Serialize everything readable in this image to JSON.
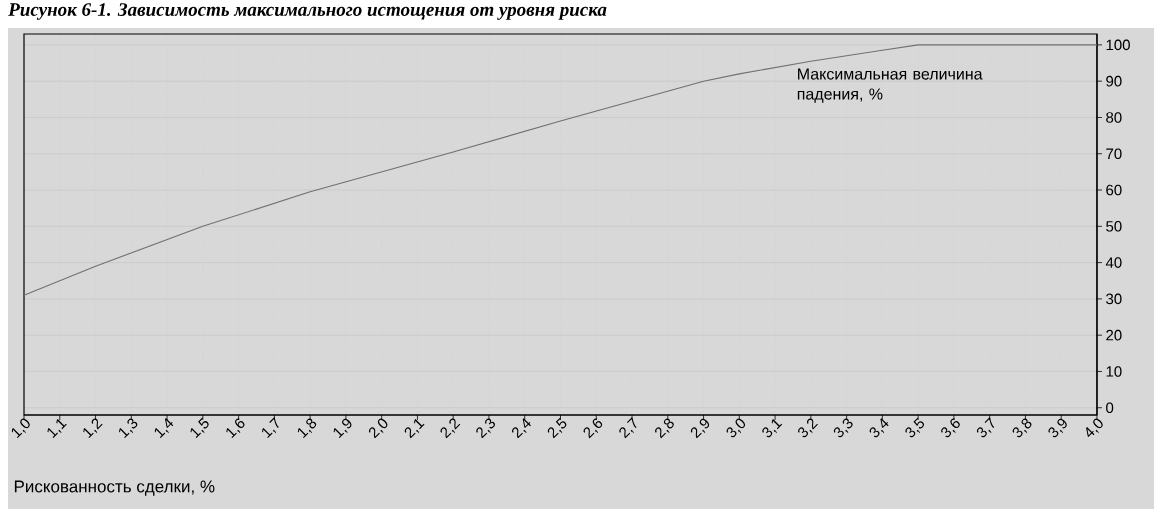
{
  "chart_data": {
    "type": "line",
    "title": "Рисунок 6-1. Зависимость максимального истощения от уровня риска",
    "xlabel": "Рискованность сделки, %",
    "ylabel": "Максимальная величина падения, %",
    "x": [
      1.0,
      1.2,
      1.5,
      1.8,
      2.0,
      2.2,
      2.5,
      2.7,
      2.9,
      3.0,
      3.2,
      3.4,
      3.5,
      4.0
    ],
    "series": [
      {
        "color": "#707070",
        "values": [
          31,
          39,
          50,
          59.5,
          65,
          70.5,
          79,
          84.5,
          90,
          92,
          95.5,
          98.5,
          100,
          100
        ]
      }
    ],
    "xlim": [
      1.0,
      4.0
    ],
    "ylim": [
      -2,
      103
    ],
    "xticks": [
      {
        "value": 1.0,
        "label": "1,0"
      },
      {
        "value": 1.1,
        "label": "1,1"
      },
      {
        "value": 1.2,
        "label": "1,2"
      },
      {
        "value": 1.3,
        "label": "1,3"
      },
      {
        "value": 1.4,
        "label": "1,4"
      },
      {
        "value": 1.5,
        "label": "1,5"
      },
      {
        "value": 1.6,
        "label": "1,6"
      },
      {
        "value": 1.7,
        "label": "1,7"
      },
      {
        "value": 1.8,
        "label": "1,8"
      },
      {
        "value": 1.9,
        "label": "1,9"
      },
      {
        "value": 2.0,
        "label": "2,0"
      },
      {
        "value": 2.1,
        "label": "2,1"
      },
      {
        "value": 2.2,
        "label": "2,2"
      },
      {
        "value": 2.3,
        "label": "2,3"
      },
      {
        "value": 2.4,
        "label": "2,4"
      },
      {
        "value": 2.5,
        "label": "2,5"
      },
      {
        "value": 2.6,
        "label": "2,6"
      },
      {
        "value": 2.7,
        "label": "2,7"
      },
      {
        "value": 2.8,
        "label": "2,8"
      },
      {
        "value": 2.9,
        "label": "2,9"
      },
      {
        "value": 3.0,
        "label": "3,0"
      },
      {
        "value": 3.1,
        "label": "3,1"
      },
      {
        "value": 3.2,
        "label": "3,2"
      },
      {
        "value": 3.3,
        "label": "3,3"
      },
      {
        "value": 3.4,
        "label": "3,4"
      },
      {
        "value": 3.5,
        "label": "3,5"
      },
      {
        "value": 3.6,
        "label": "3,6"
      },
      {
        "value": 3.7,
        "label": "3,7"
      },
      {
        "value": 3.8,
        "label": "3,8"
      },
      {
        "value": 3.9,
        "label": "3,9"
      },
      {
        "value": 4.0,
        "label": "4,0"
      }
    ],
    "yticks": [
      0,
      10,
      20,
      30,
      40,
      50,
      60,
      70,
      80,
      90,
      100
    ],
    "grid": true,
    "marker": "none",
    "line_style": "solid"
  }
}
